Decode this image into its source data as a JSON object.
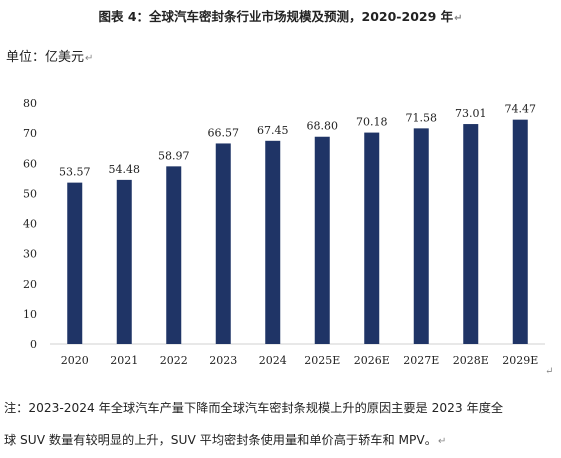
{
  "title": "图表 4：全球汽车密封条行业市场规模及预测，2020-2029 年",
  "unit_label": "单位：亿美元",
  "note_line1": "注：2023-2024 年全球汽车产量下降而全球汽车密封条规模上升的原因主要是 2023 年度全",
  "note_line2": "球 SUV 数量有较明显的上升，SUV 平均密封条使用量和单价高于轿车和 MPV。",
  "colors": {
    "bar": "#1f3466",
    "axis": "#d0d0d0",
    "text": "#222222"
  },
  "chart_data": {
    "type": "bar",
    "title": "图表 4：全球汽车密封条行业市场规模及预测，2020-2029 年",
    "ylabel": "单位：亿美元",
    "xlabel": "",
    "categories": [
      "2020",
      "2021",
      "2022",
      "2023",
      "2024",
      "2025E",
      "2026E",
      "2027E",
      "2028E",
      "2029E"
    ],
    "values": [
      53.57,
      54.48,
      58.97,
      66.57,
      67.45,
      68.8,
      70.18,
      71.58,
      73.01,
      74.47
    ],
    "data_labels": [
      "53.57",
      "54.48",
      "58.97",
      "66.57",
      "67.45",
      "68.80",
      "70.18",
      "71.58",
      "73.01",
      "74.47"
    ],
    "ylim": [
      0,
      80
    ],
    "yticks": [
      "0",
      "10",
      "20",
      "30",
      "40",
      "50",
      "60",
      "70",
      "80"
    ],
    "grid": false,
    "legend": "none"
  }
}
